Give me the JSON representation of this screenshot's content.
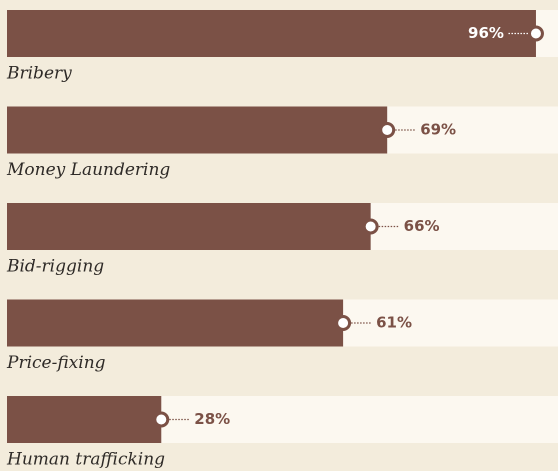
{
  "chart_data": {
    "type": "bar",
    "orientation": "horizontal",
    "categories": [
      "Bribery",
      "Money Laundering",
      "Bid-rigging",
      "Price-fixing",
      "Human trafficking"
    ],
    "values": [
      96,
      69,
      66,
      61,
      28
    ],
    "value_labels": [
      "96%",
      "69%",
      "66%",
      "61%",
      "28%"
    ],
    "xlim": [
      0,
      100
    ],
    "color": "#7b5146"
  }
}
